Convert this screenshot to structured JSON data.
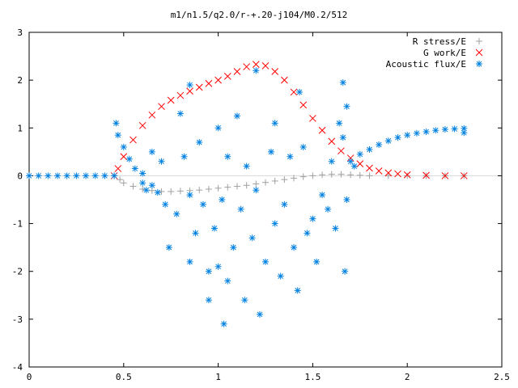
{
  "chart_data": {
    "type": "scatter",
    "title": "m1/n1.5/q2.0/r-+.20-j104/M0.2/512",
    "xlabel": "",
    "ylabel": "",
    "xlim": [
      0,
      2.5
    ],
    "ylim": [
      -4,
      3
    ],
    "x_ticks": [
      "0",
      "0.5",
      "1",
      "1.5",
      "2",
      "2.5"
    ],
    "y_ticks": [
      "3",
      "2",
      "1",
      "0",
      "-1",
      "-2",
      "-3",
      "-4"
    ],
    "grid": false,
    "legend_position": "top-right",
    "series": [
      {
        "name": "R stress/E",
        "marker": "plus",
        "color": "#a0a0a0",
        "points": [
          [
            0.45,
            0.0
          ],
          [
            0.48,
            -0.08
          ],
          [
            0.5,
            -0.15
          ],
          [
            0.55,
            -0.22
          ],
          [
            0.6,
            -0.28
          ],
          [
            0.65,
            -0.31
          ],
          [
            0.7,
            -0.33
          ],
          [
            0.75,
            -0.33
          ],
          [
            0.8,
            -0.32
          ],
          [
            0.85,
            -0.31
          ],
          [
            0.9,
            -0.3
          ],
          [
            0.95,
            -0.28
          ],
          [
            1.0,
            -0.26
          ],
          [
            1.05,
            -0.24
          ],
          [
            1.1,
            -0.22
          ],
          [
            1.15,
            -0.2
          ],
          [
            1.2,
            -0.17
          ],
          [
            1.25,
            -0.14
          ],
          [
            1.3,
            -0.11
          ],
          [
            1.35,
            -0.08
          ],
          [
            1.4,
            -0.05
          ],
          [
            1.45,
            -0.02
          ],
          [
            1.5,
            0.0
          ],
          [
            1.55,
            0.02
          ],
          [
            1.6,
            0.03
          ],
          [
            1.65,
            0.03
          ],
          [
            1.7,
            0.02
          ],
          [
            1.75,
            0.01
          ],
          [
            1.8,
            0.0
          ],
          [
            1.9,
            0.0
          ],
          [
            2.0,
            0.0
          ],
          [
            2.1,
            0.0
          ],
          [
            2.2,
            0.0
          ],
          [
            2.3,
            0.0
          ]
        ]
      },
      {
        "name": "G work/E",
        "marker": "cross",
        "color": "#ff0000",
        "points": [
          [
            0.45,
            0.0
          ],
          [
            0.47,
            0.15
          ],
          [
            0.5,
            0.4
          ],
          [
            0.55,
            0.75
          ],
          [
            0.6,
            1.05
          ],
          [
            0.65,
            1.27
          ],
          [
            0.7,
            1.45
          ],
          [
            0.75,
            1.58
          ],
          [
            0.8,
            1.68
          ],
          [
            0.85,
            1.77
          ],
          [
            0.9,
            1.85
          ],
          [
            0.95,
            1.93
          ],
          [
            1.0,
            2.0
          ],
          [
            1.05,
            2.08
          ],
          [
            1.1,
            2.18
          ],
          [
            1.15,
            2.28
          ],
          [
            1.2,
            2.33
          ],
          [
            1.25,
            2.3
          ],
          [
            1.3,
            2.18
          ],
          [
            1.35,
            2.0
          ],
          [
            1.4,
            1.75
          ],
          [
            1.45,
            1.48
          ],
          [
            1.5,
            1.2
          ],
          [
            1.55,
            0.95
          ],
          [
            1.6,
            0.72
          ],
          [
            1.65,
            0.52
          ],
          [
            1.7,
            0.37
          ],
          [
            1.75,
            0.25
          ],
          [
            1.8,
            0.16
          ],
          [
            1.85,
            0.1
          ],
          [
            1.9,
            0.06
          ],
          [
            1.95,
            0.04
          ],
          [
            2.0,
            0.02
          ],
          [
            2.1,
            0.01
          ],
          [
            2.2,
            0.0
          ],
          [
            2.3,
            0.0
          ]
        ]
      },
      {
        "name": "Acoustic flux/E",
        "marker": "star",
        "color": "#0080e0",
        "points": [
          [
            0.0,
            0.0
          ],
          [
            0.05,
            0.0
          ],
          [
            0.1,
            0.0
          ],
          [
            0.15,
            0.0
          ],
          [
            0.2,
            0.0
          ],
          [
            0.25,
            0.0
          ],
          [
            0.3,
            0.0
          ],
          [
            0.35,
            0.0
          ],
          [
            0.4,
            0.0
          ],
          [
            0.45,
            0.0
          ],
          [
            0.46,
            1.1
          ],
          [
            0.47,
            0.85
          ],
          [
            0.5,
            0.6
          ],
          [
            0.53,
            0.35
          ],
          [
            0.56,
            0.15
          ],
          [
            0.6,
            0.05
          ],
          [
            0.6,
            -0.15
          ],
          [
            0.62,
            -0.3
          ],
          [
            0.65,
            0.5
          ],
          [
            0.65,
            -0.2
          ],
          [
            0.68,
            -0.35
          ],
          [
            0.7,
            0.3
          ],
          [
            0.72,
            -0.6
          ],
          [
            0.74,
            -1.5
          ],
          [
            0.78,
            -0.8
          ],
          [
            0.8,
            1.3
          ],
          [
            0.82,
            0.4
          ],
          [
            0.85,
            -0.4
          ],
          [
            0.85,
            -1.8
          ],
          [
            0.88,
            -1.2
          ],
          [
            0.9,
            0.7
          ],
          [
            0.92,
            -0.6
          ],
          [
            0.95,
            -2.0
          ],
          [
            0.98,
            -1.1
          ],
          [
            1.0,
            1.0
          ],
          [
            1.0,
            -1.9
          ],
          [
            1.02,
            -0.5
          ],
          [
            1.05,
            0.4
          ],
          [
            1.05,
            -2.2
          ],
          [
            1.08,
            -1.5
          ],
          [
            1.1,
            1.25
          ],
          [
            1.12,
            -0.7
          ],
          [
            1.14,
            -2.6
          ],
          [
            1.15,
            0.2
          ],
          [
            1.18,
            -1.3
          ],
          [
            1.2,
            2.2
          ],
          [
            1.2,
            -0.3
          ],
          [
            1.22,
            -2.9
          ],
          [
            1.25,
            -1.8
          ],
          [
            1.28,
            0.5
          ],
          [
            1.3,
            1.1
          ],
          [
            1.3,
            -1.0
          ],
          [
            1.33,
            -2.1
          ],
          [
            1.35,
            -0.6
          ],
          [
            1.38,
            0.4
          ],
          [
            1.4,
            -1.5
          ],
          [
            1.42,
            -2.4
          ],
          [
            1.45,
            0.6
          ],
          [
            1.47,
            -1.2
          ],
          [
            1.5,
            -0.9
          ],
          [
            1.52,
            -1.8
          ],
          [
            1.55,
            -0.4
          ],
          [
            1.58,
            -0.7
          ],
          [
            1.6,
            0.3
          ],
          [
            1.62,
            -1.1
          ],
          [
            1.64,
            1.1
          ],
          [
            1.66,
            0.8
          ],
          [
            1.67,
            -2.0
          ],
          [
            1.68,
            -0.5
          ],
          [
            1.7,
            0.3
          ],
          [
            1.72,
            0.2
          ],
          [
            1.75,
            0.45
          ],
          [
            1.8,
            0.55
          ],
          [
            1.85,
            0.65
          ],
          [
            1.9,
            0.73
          ],
          [
            1.95,
            0.8
          ],
          [
            2.0,
            0.85
          ],
          [
            2.05,
            0.89
          ],
          [
            2.1,
            0.92
          ],
          [
            2.15,
            0.95
          ],
          [
            2.2,
            0.97
          ],
          [
            2.25,
            0.98
          ],
          [
            2.3,
            0.99
          ],
          [
            2.3,
            0.9
          ],
          [
            1.03,
            -3.1
          ],
          [
            0.95,
            -2.6
          ],
          [
            1.66,
            1.95
          ],
          [
            1.68,
            1.45
          ],
          [
            1.43,
            1.75
          ],
          [
            0.85,
            1.9
          ]
        ]
      }
    ]
  }
}
